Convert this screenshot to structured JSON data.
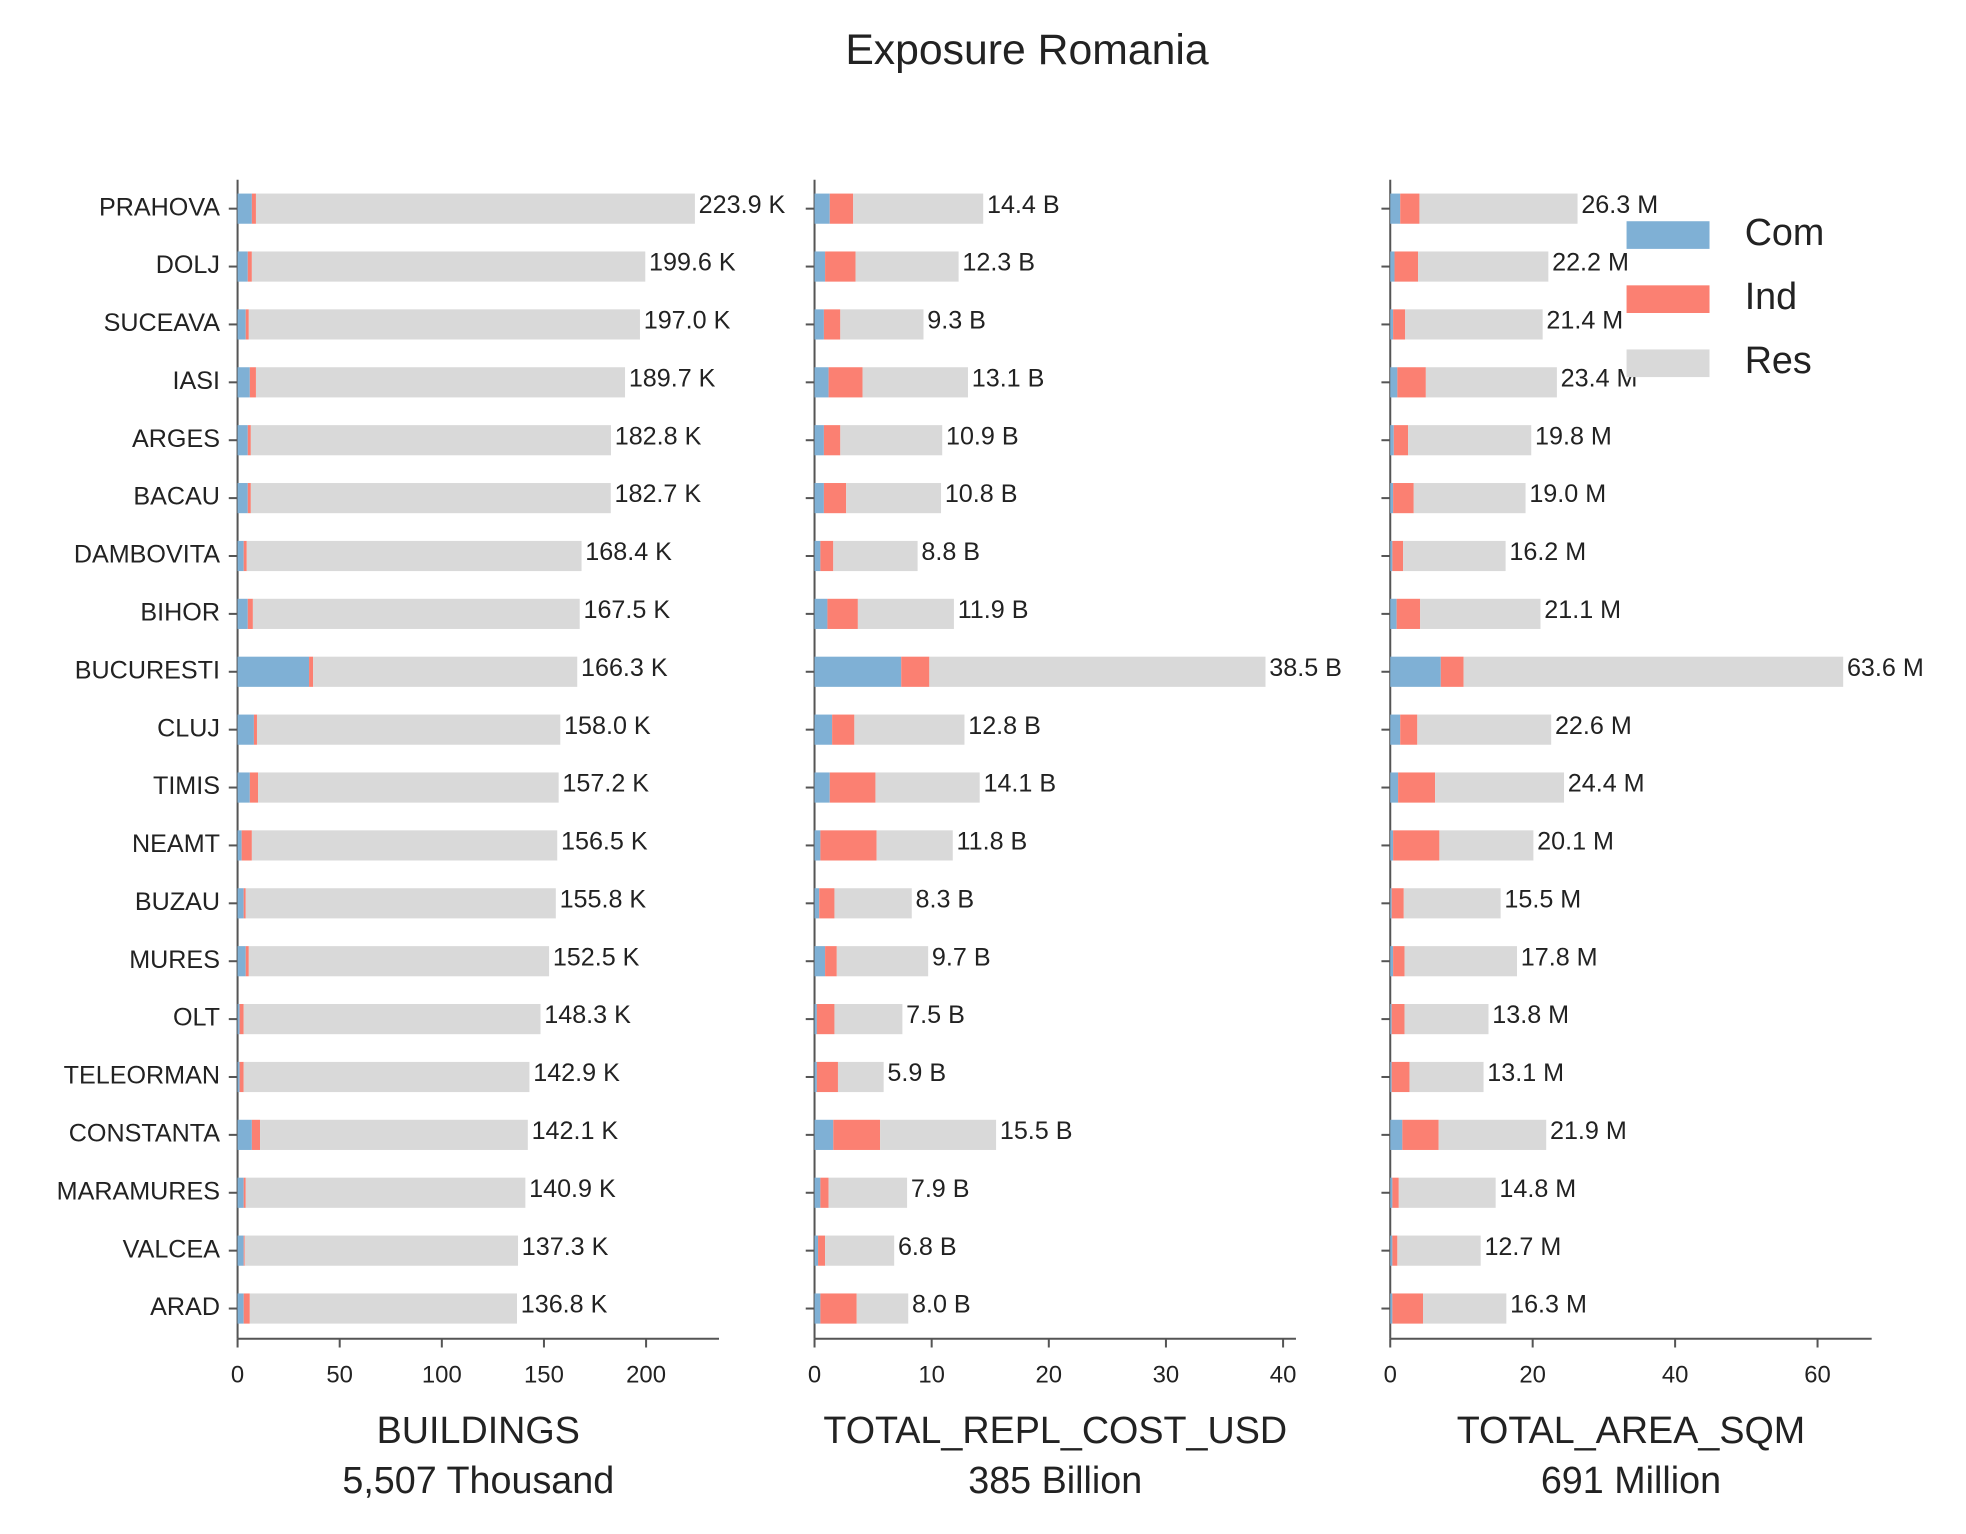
{
  "title": "Exposure Romania",
  "chart_data": [
    {
      "type": "barh",
      "xlabel": "BUILDINGS",
      "xlabel_total": "5,507 Thousand",
      "categories": [
        "PRAHOVA",
        "DOLJ",
        "SUCEAVA",
        "IASI",
        "ARGES",
        "BACAU",
        "DAMBOVITA",
        "BIHOR",
        "BUCURESTI",
        "CLUJ",
        "TIMIS",
        "NEAMT",
        "BUZAU",
        "MURES",
        "OLT",
        "TELEORMAN",
        "CONSTANTA",
        "MARAMURES",
        "VALCEA",
        "ARAD"
      ],
      "series": [
        {
          "name": "Com",
          "color": "#7fb0d5",
          "values": [
            7,
            5,
            4,
            6,
            5,
            5,
            3,
            5,
            35,
            8,
            6,
            2,
            3,
            4,
            1,
            1,
            7,
            3,
            3,
            3
          ]
        },
        {
          "name": "Ind",
          "color": "#fb8072",
          "values": [
            2,
            2,
            1.5,
            3,
            1.5,
            1.5,
            1.5,
            2.5,
            2,
            1.5,
            4,
            5,
            1,
            1.5,
            2,
            2,
            4,
            1,
            0.5,
            3
          ]
        },
        {
          "name": "Res",
          "color": "#d9d9d9",
          "values": [
            214.9,
            192.6,
            191.5,
            180.7,
            176.3,
            176.2,
            163.9,
            160.0,
            129.3,
            148.5,
            147.2,
            149.5,
            151.8,
            147.0,
            145.3,
            139.9,
            131.1,
            136.9,
            133.8,
            130.8
          ]
        }
      ],
      "totals": [
        223.9,
        199.6,
        197.0,
        189.7,
        182.8,
        182.7,
        168.4,
        167.5,
        166.3,
        158.0,
        157.2,
        156.5,
        155.8,
        152.5,
        148.3,
        142.9,
        142.1,
        140.9,
        137.3,
        136.8
      ],
      "total_labels": [
        "223.9 K",
        "199.6 K",
        "197.0 K",
        "189.7 K",
        "182.8 K",
        "182.7 K",
        "168.4 K",
        "167.5 K",
        "166.3 K",
        "158.0 K",
        "157.2 K",
        "156.5 K",
        "155.8 K",
        "152.5 K",
        "148.3 K",
        "142.9 K",
        "142.1 K",
        "140.9 K",
        "137.3 K",
        "136.8 K"
      ],
      "xlim": [
        0,
        235.7
      ],
      "xticks": [
        0,
        50,
        100,
        150,
        200
      ]
    },
    {
      "type": "barh",
      "xlabel": "TOTAL_REPL_COST_USD",
      "xlabel_total": "385 Billion",
      "series": [
        {
          "name": "Com",
          "color": "#7fb0d5",
          "values": [
            1.3,
            0.9,
            0.8,
            1.2,
            0.8,
            0.8,
            0.5,
            1.1,
            7.4,
            1.5,
            1.3,
            0.5,
            0.4,
            0.9,
            0.2,
            0.2,
            1.6,
            0.5,
            0.3,
            0.5
          ]
        },
        {
          "name": "Ind",
          "color": "#fb8072",
          "values": [
            2.0,
            2.6,
            1.4,
            2.9,
            1.4,
            1.9,
            1.1,
            2.6,
            2.4,
            1.9,
            3.9,
            4.8,
            1.3,
            1.0,
            1.5,
            1.8,
            4.0,
            0.7,
            0.6,
            3.1
          ]
        },
        {
          "name": "Res",
          "color": "#d9d9d9",
          "values": [
            11.1,
            8.8,
            7.1,
            9.0,
            8.7,
            8.1,
            7.2,
            8.2,
            28.7,
            9.4,
            8.9,
            6.5,
            6.6,
            7.8,
            5.8,
            3.9,
            9.9,
            6.7,
            5.9,
            4.4
          ]
        }
      ],
      "totals": [
        14.4,
        12.3,
        9.3,
        13.1,
        10.9,
        10.8,
        8.8,
        11.9,
        38.5,
        12.8,
        14.1,
        11.8,
        8.3,
        9.7,
        7.5,
        5.9,
        15.5,
        7.9,
        6.8,
        8.0
      ],
      "total_labels": [
        "14.4 B",
        "12.3 B",
        "9.3 B",
        "13.1 B",
        "10.9 B",
        "10.8 B",
        "8.8 B",
        "11.9 B",
        "38.5 B",
        "12.8 B",
        "14.1 B",
        "11.8 B",
        "8.3 B",
        "9.7 B",
        "7.5 B",
        "5.9 B",
        "15.5 B",
        "7.9 B",
        "6.8 B",
        "8.0 B"
      ],
      "xlim": [
        0,
        41.1
      ],
      "xticks": [
        0,
        10,
        20,
        30,
        40
      ]
    },
    {
      "type": "barh",
      "xlabel": "TOTAL_AREA_SQM",
      "xlabel_total": "691 Million",
      "legend": "upper right",
      "series": [
        {
          "name": "Com",
          "color": "#7fb0d5",
          "values": [
            1.4,
            0.6,
            0.4,
            1.0,
            0.5,
            0.4,
            0.3,
            0.9,
            7.1,
            1.4,
            1.1,
            0.4,
            0.2,
            0.4,
            0.2,
            0.2,
            1.7,
            0.3,
            0.3,
            0.3
          ]
        },
        {
          "name": "Ind",
          "color": "#fb8072",
          "values": [
            2.7,
            3.3,
            1.7,
            4.0,
            2.0,
            2.9,
            1.5,
            3.3,
            3.2,
            2.4,
            5.2,
            6.5,
            1.7,
            1.6,
            1.8,
            2.5,
            5.1,
            0.9,
            0.7,
            4.3
          ]
        },
        {
          "name": "Res",
          "color": "#d9d9d9",
          "values": [
            22.2,
            18.3,
            19.3,
            18.4,
            17.3,
            15.7,
            14.4,
            16.9,
            53.3,
            18.8,
            18.1,
            13.2,
            13.6,
            15.8,
            11.8,
            10.4,
            15.1,
            13.6,
            11.7,
            11.7
          ]
        }
      ],
      "totals": [
        26.3,
        22.2,
        21.4,
        23.4,
        19.8,
        19.0,
        16.2,
        21.1,
        63.6,
        22.6,
        24.4,
        20.1,
        15.5,
        17.8,
        13.8,
        13.1,
        21.9,
        14.8,
        12.7,
        16.3
      ],
      "total_labels": [
        "26.3 M",
        "22.2 M",
        "21.4 M",
        "23.4 M",
        "19.8 M",
        "19.0 M",
        "16.2 M",
        "21.1 M",
        "63.6 M",
        "22.6 M",
        "24.4 M",
        "20.1 M",
        "15.5 M",
        "17.8 M",
        "13.8 M",
        "13.1 M",
        "21.9 M",
        "14.8 M",
        "12.7 M",
        "16.3 M"
      ],
      "xlim": [
        0,
        67.6
      ],
      "xticks": [
        0,
        20,
        40,
        60
      ]
    }
  ]
}
